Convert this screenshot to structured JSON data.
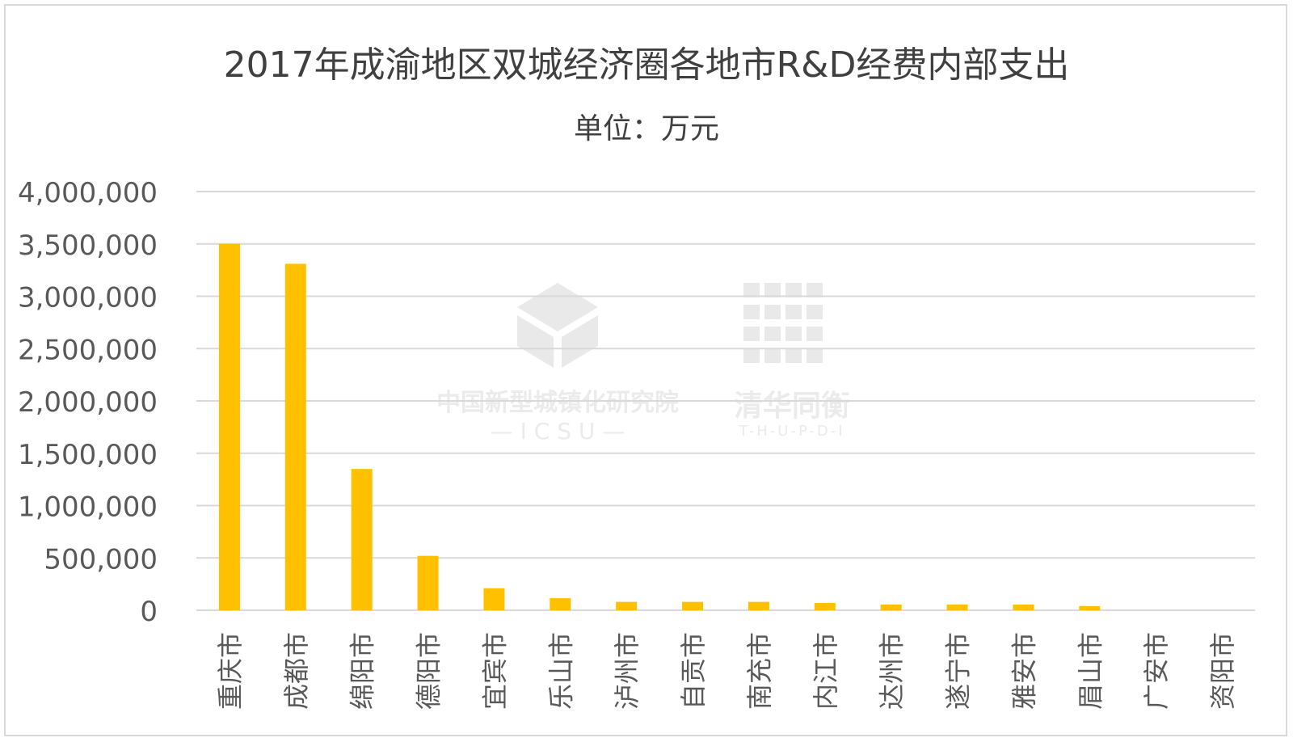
{
  "chart_data": {
    "type": "bar",
    "title": "2017年成渝地区双城经济圈各地市R&D经费内部支出",
    "subtitle": "单位：万元",
    "categories": [
      "重庆市",
      "成都市",
      "绵阳市",
      "德阳市",
      "宜宾市",
      "乐山市",
      "泸州市",
      "自贡市",
      "南充市",
      "内江市",
      "达州市",
      "遂宁市",
      "雅安市",
      "眉山市",
      "广安市",
      "资阳市"
    ],
    "values": [
      3500000,
      3310000,
      1350000,
      520000,
      210000,
      115000,
      80000,
      80000,
      80000,
      70000,
      55000,
      55000,
      55000,
      40000,
      0,
      0
    ],
    "ylim": [
      0,
      4000000
    ],
    "yticks": [
      "0",
      "500,000",
      "1,000,000",
      "1,500,000",
      "2,000,000",
      "2,500,000",
      "3,000,000",
      "3,500,000",
      "4,000,000"
    ],
    "grid": true,
    "legend": "none",
    "bar_color": "#ffc000",
    "grid_color": "#d9d9d9",
    "text_color": "#595959"
  },
  "watermark": {
    "left_name": "中国新型城镇化研究院",
    "left_code": "— I C S U —",
    "right_name": "清华同衡",
    "right_code": "T-H-U-P-D-I"
  }
}
